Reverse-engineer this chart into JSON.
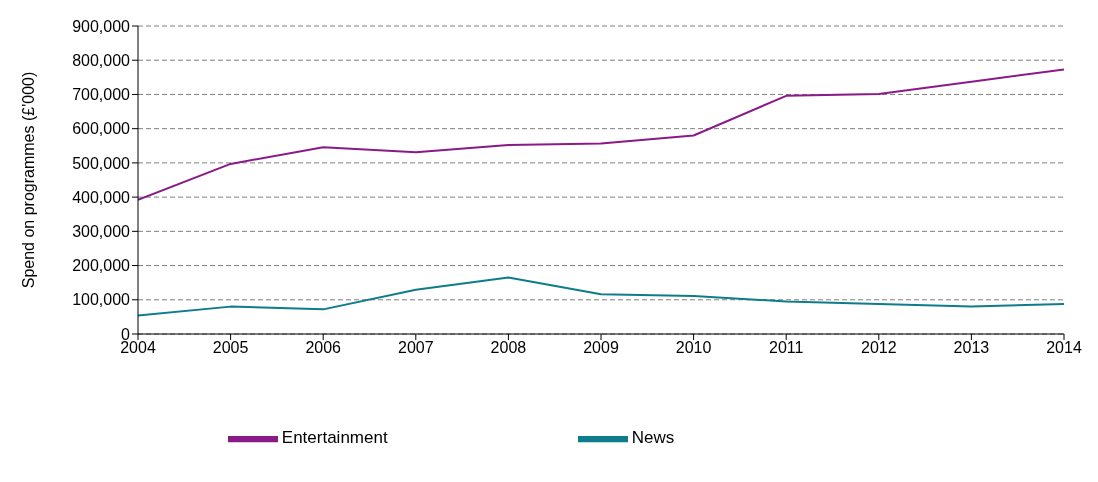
{
  "chart_data": {
    "type": "line",
    "ylabel": "Spend on programmes (£'000)",
    "x": [
      2004,
      2005,
      2006,
      2007,
      2008,
      2009,
      2010,
      2011,
      2012,
      2013,
      2014
    ],
    "xlim": [
      2004,
      2014
    ],
    "xticks": [
      2004,
      2005,
      2006,
      2007,
      2008,
      2009,
      2010,
      2011,
      2012,
      2013,
      2014
    ],
    "ylim": [
      0,
      900000
    ],
    "yticks": [
      {
        "value": 0,
        "label": "0"
      },
      {
        "value": 100000,
        "label": "100,000"
      },
      {
        "value": 200000,
        "label": "200,000"
      },
      {
        "value": 300000,
        "label": "300,000"
      },
      {
        "value": 400000,
        "label": "400,000"
      },
      {
        "value": 500000,
        "label": "500,000"
      },
      {
        "value": 600000,
        "label": "600,000"
      },
      {
        "value": 700000,
        "label": "700,000"
      },
      {
        "value": 800000,
        "label": "800,000"
      },
      {
        "value": 900000,
        "label": "900,000"
      }
    ],
    "grid": "y",
    "legend": "bottom",
    "marker": "none",
    "line_style": "solid",
    "series": [
      {
        "name": "Entertainment",
        "color": "#8b1a89",
        "values": [
          392000,
          497000,
          546000,
          531000,
          552000,
          557000,
          580000,
          696000,
          701000,
          737000,
          773000
        ]
      },
      {
        "name": "News",
        "color": "#0e7c8b",
        "values": [
          54000,
          80000,
          72000,
          129000,
          165000,
          116000,
          111000,
          95000,
          88000,
          80000,
          88000
        ]
      }
    ]
  }
}
